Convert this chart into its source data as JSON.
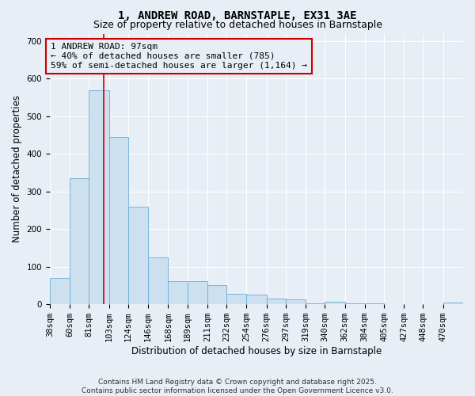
{
  "title_line1": "1, ANDREW ROAD, BARNSTAPLE, EX31 3AE",
  "title_line2": "Size of property relative to detached houses in Barnstaple",
  "xlabel": "Distribution of detached houses by size in Barnstaple",
  "ylabel": "Number of detached properties",
  "categories": [
    "38sqm",
    "60sqm",
    "81sqm",
    "103sqm",
    "124sqm",
    "146sqm",
    "168sqm",
    "189sqm",
    "211sqm",
    "232sqm",
    "254sqm",
    "276sqm",
    "297sqm",
    "319sqm",
    "340sqm",
    "362sqm",
    "384sqm",
    "405sqm",
    "427sqm",
    "448sqm",
    "470sqm"
  ],
  "bin_edges": [
    38,
    60,
    81,
    103,
    124,
    146,
    168,
    189,
    211,
    232,
    254,
    276,
    297,
    319,
    340,
    362,
    384,
    405,
    427,
    448,
    470,
    492
  ],
  "values": [
    70,
    335,
    570,
    445,
    260,
    125,
    62,
    62,
    50,
    27,
    25,
    15,
    13,
    3,
    7,
    3,
    2,
    1,
    1,
    1,
    5
  ],
  "bar_facecolor": "#cce0f0",
  "bar_edgecolor": "#6baed6",
  "bg_color": "#e8eef5",
  "grid_color": "#ffffff",
  "vline_x": 97,
  "vline_color": "#cc0000",
  "annotation_line1": "1 ANDREW ROAD: 97sqm",
  "annotation_line2": "← 40% of detached houses are smaller (785)",
  "annotation_line3": "59% of semi-detached houses are larger (1,164) →",
  "ylim": [
    0,
    720
  ],
  "yticks": [
    0,
    100,
    200,
    300,
    400,
    500,
    600,
    700
  ],
  "title_fontsize": 10,
  "subtitle_fontsize": 9,
  "axis_label_fontsize": 8.5,
  "tick_fontsize": 7.5,
  "annotation_fontsize": 8,
  "footer_text": "Contains HM Land Registry data © Crown copyright and database right 2025.\nContains public sector information licensed under the Open Government Licence v3.0.",
  "footer_fontsize": 6.5
}
